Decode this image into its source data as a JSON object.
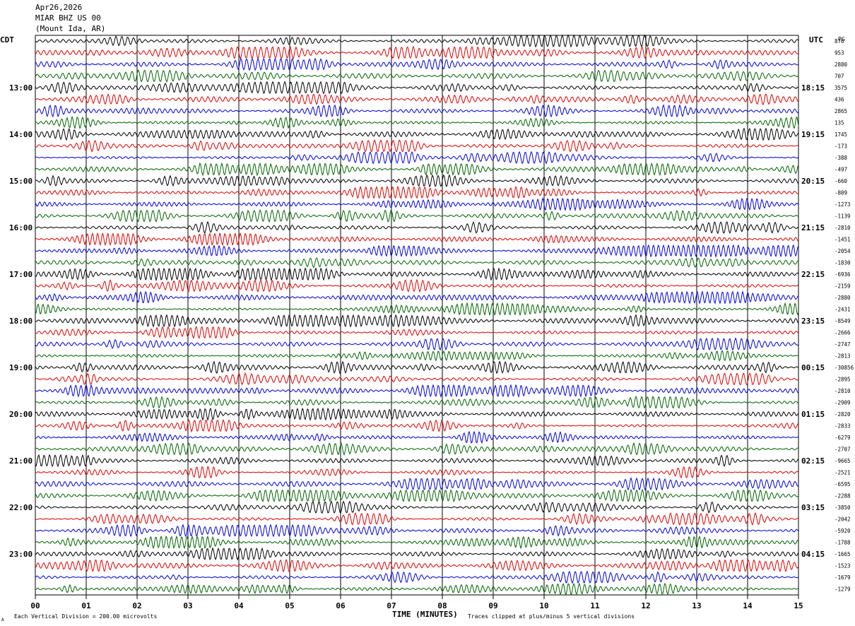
{
  "header": {
    "date": "Apr26,2026",
    "station": "MIAR BHZ US 00",
    "location": "(Mount Ida, AR)"
  },
  "labels": {
    "left_tz": "CDT",
    "right_tz": "UTC",
    "pg": "PG"
  },
  "footer": {
    "scale_note": "Each Vertical Division =  200.00 microvolts",
    "xlabel": "TIME (MINUTES)",
    "clip_note": "Traces clipped at plus/minus 5 vertical divisions",
    "corner_mark": "A"
  },
  "colors": {
    "trace_cycle": [
      "#000000",
      "#e00000",
      "#0000e0",
      "#006400"
    ],
    "grid": "#000000",
    "background": "#ffffff"
  },
  "chart_data": {
    "type": "line",
    "title": "MIAR BHZ US 00",
    "xlabel": "TIME (MINUTES)",
    "x_ticks": [
      "00",
      "01",
      "02",
      "03",
      "04",
      "05",
      "06",
      "07",
      "08",
      "09",
      "10",
      "11",
      "12",
      "13",
      "14",
      "15"
    ],
    "xlim": [
      0,
      15
    ],
    "rows_per_hour": 4,
    "minutes_per_row": 15,
    "left_hour_labels": [
      "13:00",
      "14:00",
      "15:00",
      "16:00",
      "17:00",
      "18:00",
      "19:00",
      "20:00",
      "21:00",
      "22:00",
      "23:00"
    ],
    "right_hour_labels": [
      "18:15",
      "19:15",
      "20:15",
      "21:15",
      "22:15",
      "23:15",
      "00:15",
      "01:15",
      "02:15",
      "03:15",
      "04:15"
    ],
    "row_values": [
      "876",
      "953",
      "2880",
      "707",
      "3575",
      "436",
      "2865",
      "135",
      "1745",
      "-173",
      "-388",
      "-497",
      "-660",
      "-809",
      "-1273",
      "-1139",
      "-2810",
      "-1451",
      "-2054",
      "-1830",
      "-6936",
      "-2159",
      "-2880",
      "-2431",
      "-8549",
      "-2666",
      "-2747",
      "-2813",
      "-30856",
      "-2895",
      "-2810",
      "-2909",
      "-2820",
      "-2833",
      "-6279",
      "-2707",
      "-9665",
      "-2521",
      "-6595",
      "-2288",
      "-3850",
      "-2042",
      "-5920",
      "-1788",
      "-1665",
      "-1523",
      "-1679",
      "-1279"
    ],
    "units": "microvolts",
    "division_value": 200.0
  }
}
